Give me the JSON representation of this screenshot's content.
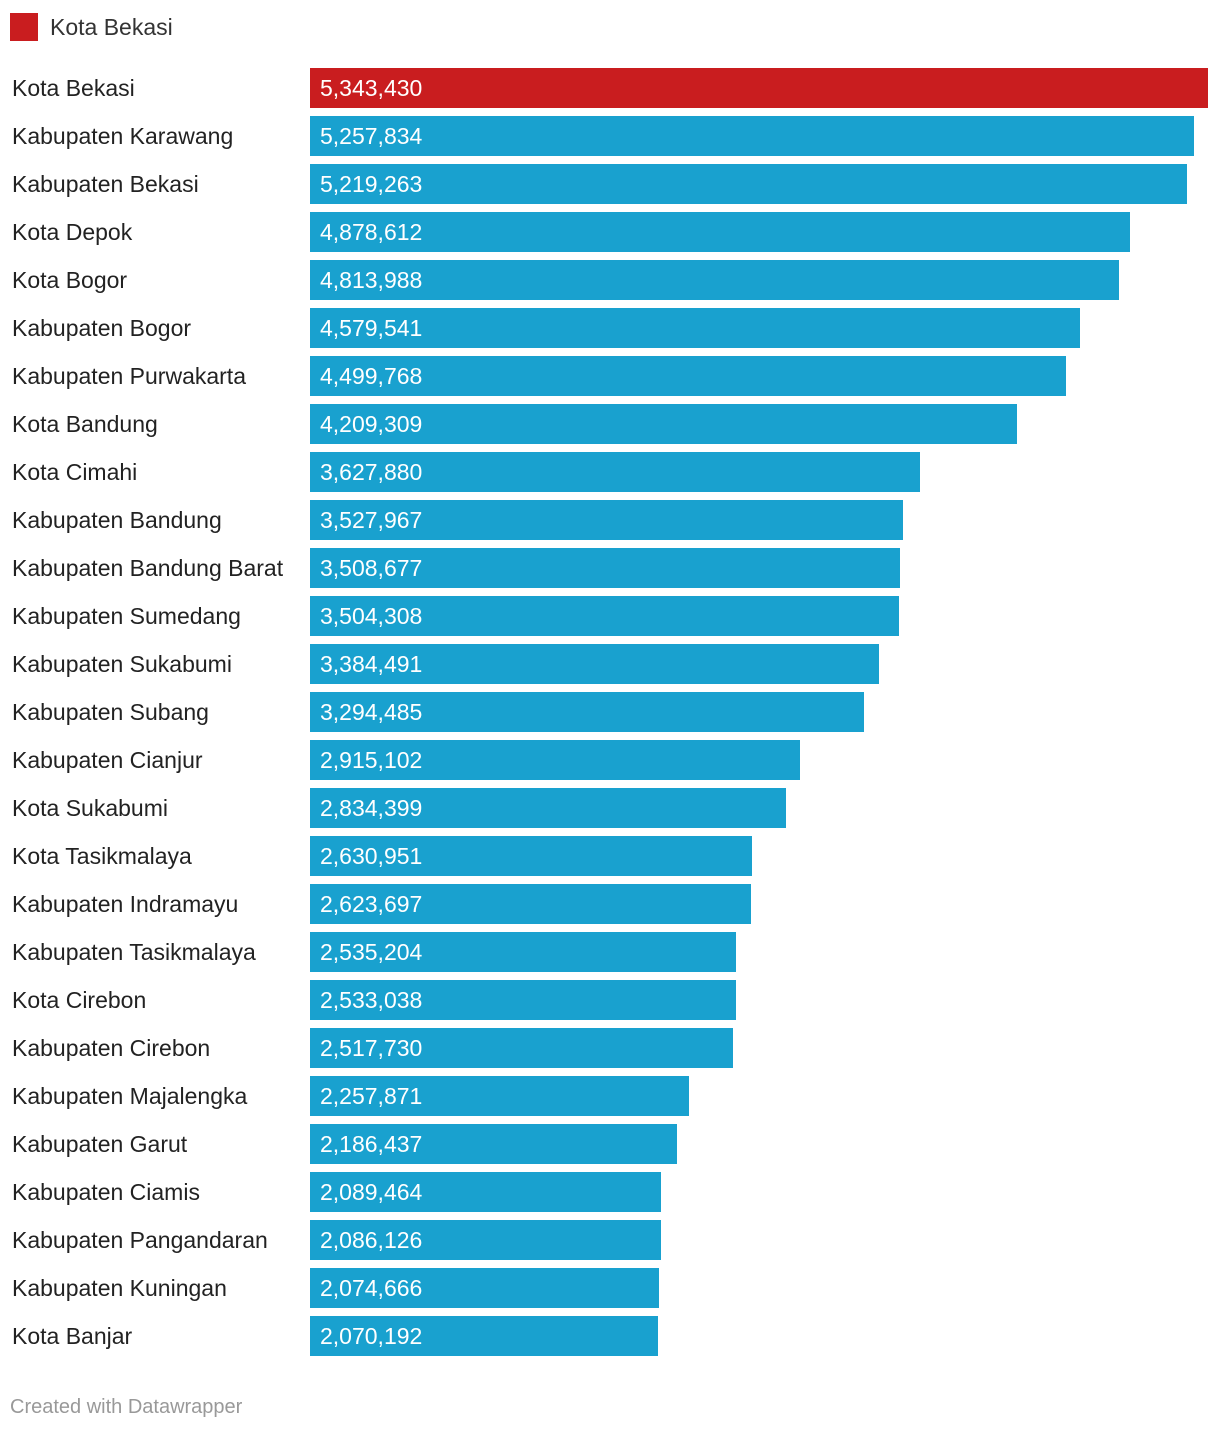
{
  "legend": {
    "label": "Kota Bekasi",
    "color": "#c91d1f"
  },
  "colors": {
    "highlight": "#c91d1f",
    "default": "#19a1cf",
    "label_text": "#222222",
    "value_text": "#ffffff"
  },
  "footer": {
    "credit": "Created with Datawrapper"
  },
  "chart_data": {
    "type": "bar",
    "orientation": "horizontal",
    "title": "",
    "xlabel": "",
    "ylabel": "",
    "xlim": [
      0,
      5343430
    ],
    "highlight": "Kota Bekasi",
    "categories": [
      "Kota Bekasi",
      "Kabupaten Karawang",
      "Kabupaten Bekasi",
      "Kota Depok",
      "Kota Bogor",
      "Kabupaten Bogor",
      "Kabupaten Purwakarta",
      "Kota Bandung",
      "Kota Cimahi",
      "Kabupaten Bandung",
      "Kabupaten Bandung Barat",
      "Kabupaten Sumedang",
      "Kabupaten Sukabumi",
      "Kabupaten Subang",
      "Kabupaten Cianjur",
      "Kota Sukabumi",
      "Kota Tasikmalaya",
      "Kabupaten Indramayu",
      "Kabupaten Tasikmalaya",
      "Kota Cirebon",
      "Kabupaten Cirebon",
      "Kabupaten Majalengka",
      "Kabupaten Garut",
      "Kabupaten Ciamis",
      "Kabupaten Pangandaran",
      "Kabupaten Kuningan",
      "Kota Banjar"
    ],
    "values": [
      5343430,
      5257834,
      5219263,
      4878612,
      4813988,
      4579541,
      4499768,
      4209309,
      3627880,
      3527967,
      3508677,
      3504308,
      3384491,
      3294485,
      2915102,
      2834399,
      2630951,
      2623697,
      2535204,
      2533038,
      2517730,
      2257871,
      2186437,
      2089464,
      2086126,
      2074666,
      2070192
    ],
    "value_labels": [
      "5,343,430",
      "5,257,834",
      "5,219,263",
      "4,878,612",
      "4,813,988",
      "4,579,541",
      "4,499,768",
      "4,209,309",
      "3,627,880",
      "3,527,967",
      "3,508,677",
      "3,504,308",
      "3,384,491",
      "3,294,485",
      "2,915,102",
      "2,834,399",
      "2,630,951",
      "2,623,697",
      "2,535,204",
      "2,533,038",
      "2,517,730",
      "2,257,871",
      "2,186,437",
      "2,089,464",
      "2,086,126",
      "2,074,666",
      "2,070,192"
    ]
  }
}
